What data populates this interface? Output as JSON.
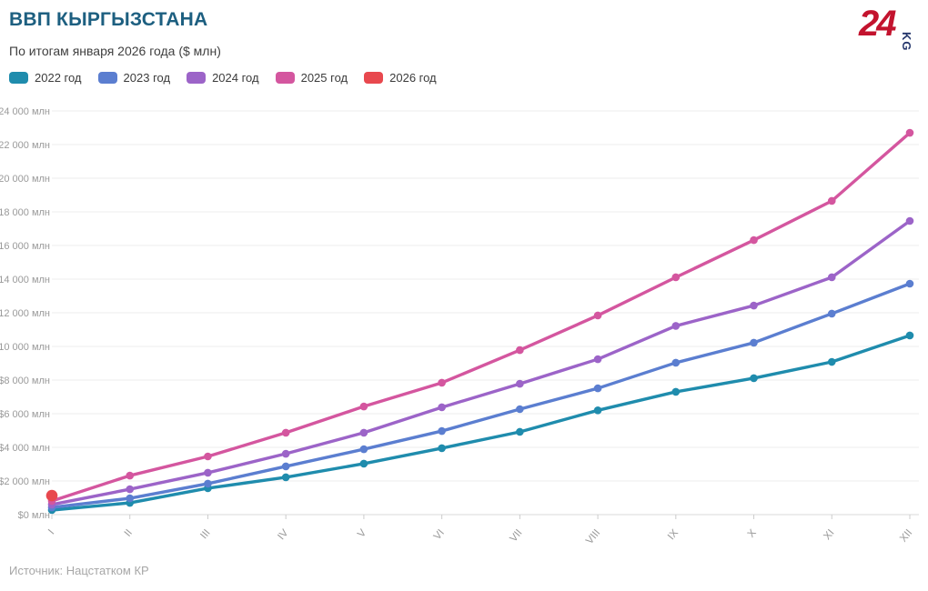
{
  "header": {
    "title": "ВВП КЫРГЫЗСТАНА",
    "subtitle": "По итогам января 2026 года ($ млн)"
  },
  "logo": {
    "number": "24",
    "suffix": "KG"
  },
  "legend": [
    {
      "label": "2022 год",
      "color": "#1f8cad"
    },
    {
      "label": "2023 год",
      "color": "#5b7ed0"
    },
    {
      "label": "2024 год",
      "color": "#9c64c8"
    },
    {
      "label": "2025 год",
      "color": "#d4569f"
    },
    {
      "label": "2026 год",
      "color": "#e8484e"
    }
  ],
  "footer": {
    "source": "Источник: Нацстатком КР"
  },
  "chart_data": {
    "type": "line",
    "title": "ВВП КЫРГЫЗСТАНА",
    "subtitle": "По итогам января 2026 года ($ млн)",
    "categories": [
      "I",
      "II",
      "III",
      "IV",
      "V",
      "VI",
      "VII",
      "VIII",
      "IX",
      "X",
      "XI",
      "XII"
    ],
    "series": [
      {
        "name": "2022 год",
        "color": "#1f8cad",
        "values": [
          270,
          700,
          1570,
          2220,
          3030,
          3950,
          4920,
          6200,
          7300,
          8110,
          9080,
          10650
        ]
      },
      {
        "name": "2023 год",
        "color": "#5b7ed0",
        "values": [
          430,
          970,
          1840,
          2870,
          3890,
          4970,
          6270,
          7510,
          9030,
          10220,
          11950,
          13730
        ]
      },
      {
        "name": "2024 год",
        "color": "#9c64c8",
        "values": [
          600,
          1510,
          2490,
          3620,
          4870,
          6380,
          7780,
          9240,
          11220,
          12430,
          14110,
          17460
        ]
      },
      {
        "name": "2025 год",
        "color": "#d4569f",
        "values": [
          810,
          2320,
          3460,
          4870,
          6430,
          7840,
          9780,
          11840,
          14110,
          16320,
          18650,
          22700
        ]
      },
      {
        "name": "2026 год",
        "color": "#e8484e",
        "values": [
          1130
        ]
      }
    ],
    "ylim": [
      0,
      24000
    ],
    "ytick_step": 2000,
    "yticks": [
      {
        "value": 0,
        "label": "$0 млн"
      },
      {
        "value": 2000,
        "label": "$2 000 млн"
      },
      {
        "value": 4000,
        "label": "$4 000 млн"
      },
      {
        "value": 6000,
        "label": "$6 000 млн"
      },
      {
        "value": 8000,
        "label": "$8 000 млн"
      },
      {
        "value": 10000,
        "label": "$10 000 млн"
      },
      {
        "value": 12000,
        "label": "$12 000 млн"
      },
      {
        "value": 14000,
        "label": "$14 000 млн"
      },
      {
        "value": 16000,
        "label": "$16 000 млн"
      },
      {
        "value": 18000,
        "label": "$18 000 млн"
      },
      {
        "value": 20000,
        "label": "$20 000 млн"
      },
      {
        "value": 22000,
        "label": "$22 000 млн"
      },
      {
        "value": 24000,
        "label": "$24 000 млн"
      }
    ],
    "grid": "horizontal",
    "legend_position": "top",
    "xlabel": "",
    "ylabel": "",
    "source": "Источник: Нацстатком КР"
  }
}
